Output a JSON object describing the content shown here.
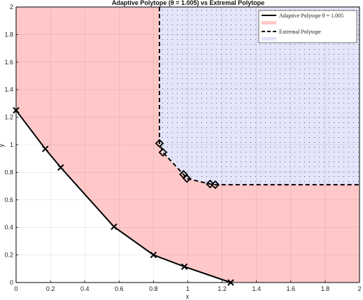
{
  "chart_data": {
    "type": "line",
    "title": "Adaptive Polytope (θ = 1.005) vs Extremal Polytope",
    "xlabel": "x",
    "ylabel": "y",
    "xlim": [
      0,
      2
    ],
    "ylim": [
      0,
      2
    ],
    "xticks": [
      "0",
      "0.2",
      "0.4",
      "0.6",
      "0.8",
      "1",
      "1.2",
      "1.4",
      "1.6",
      "1.8",
      "2"
    ],
    "yticks": [
      "0",
      "0.2",
      "0.4",
      "0.6",
      "0.8",
      "1",
      "1.2",
      "1.4",
      "1.6",
      "1.8",
      "2"
    ],
    "grid": true,
    "legend_position": "top-right",
    "series": [
      {
        "name": "Adaptive Polytope θ = 1.005",
        "style": "solid",
        "marker": "x",
        "color": "#000000",
        "fill_color": "#ffc8c8",
        "points": [
          [
            0.0,
            1.25
          ],
          [
            0.17,
            0.97
          ],
          [
            0.26,
            0.835
          ],
          [
            0.57,
            0.405
          ],
          [
            0.8,
            0.2
          ],
          [
            0.98,
            0.115
          ],
          [
            1.25,
            0.0
          ]
        ]
      },
      {
        "name": "Extremal Polytope",
        "style": "dashed",
        "marker": "diamond",
        "color": "#000000",
        "fill_color": "#e4e4fa",
        "points": [
          [
            0.835,
            2.0
          ],
          [
            0.835,
            1.01
          ],
          [
            0.855,
            0.945
          ],
          [
            0.975,
            0.785
          ],
          [
            0.995,
            0.755
          ],
          [
            1.13,
            0.715
          ],
          [
            1.16,
            0.71
          ],
          [
            2.0,
            0.71
          ]
        ]
      }
    ]
  }
}
